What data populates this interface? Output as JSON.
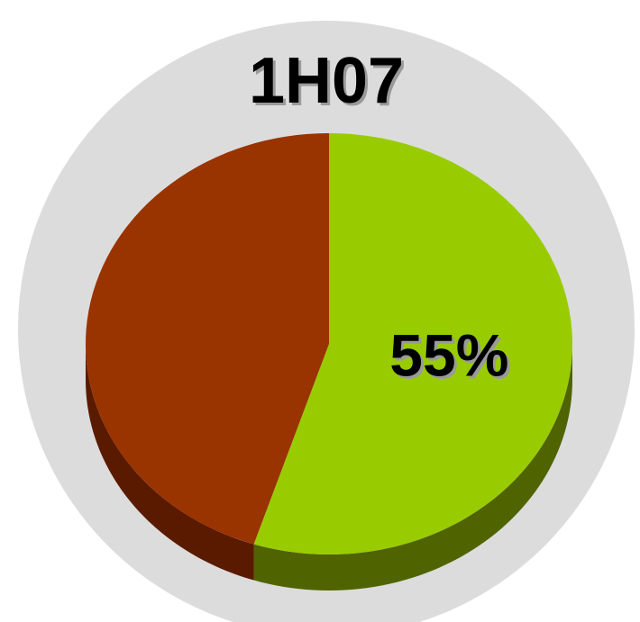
{
  "chart_data": {
    "type": "pie",
    "title": "1H07",
    "values": [
      55,
      45
    ],
    "value_labels": [
      "55%",
      null
    ],
    "colors": [
      "#99cc00",
      "#993300"
    ],
    "side_colors": [
      "#4f6400",
      "#5a1a00"
    ]
  }
}
